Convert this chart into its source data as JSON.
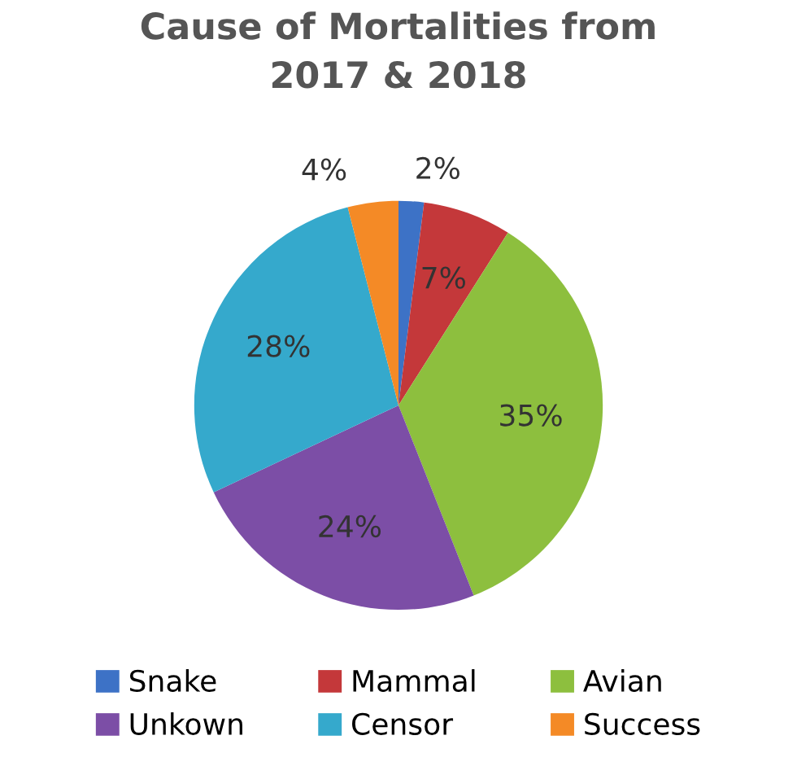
{
  "chart_data": {
    "type": "pie",
    "title": "Cause of Mortalities from\n2017 & 2018",
    "categories": [
      "Snake",
      "Mammal",
      "Avian",
      "Unkown",
      "Censor",
      "Success"
    ],
    "values": [
      2,
      7,
      35,
      24,
      28,
      4
    ],
    "colors": [
      "#3d72c6",
      "#c4383a",
      "#8dbf3e",
      "#7c4ea6",
      "#35a9cc",
      "#f48a26"
    ],
    "value_labels": [
      "2%",
      "7%",
      "35%",
      "24%",
      "28%",
      "4%"
    ],
    "legend": "bottom"
  }
}
